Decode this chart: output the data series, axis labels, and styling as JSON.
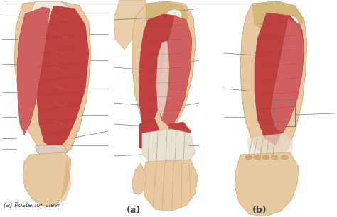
{
  "background_color": "#ffffff",
  "label_left": "(a) Posterior view",
  "label_mid": "(a)",
  "label_right": "(b)",
  "label_fontsize": 6.5,
  "label_fontsize_ab": 9,
  "label_color": "#444444",
  "fig_width": 4.74,
  "fig_height": 3.06,
  "dpi": 100,
  "skin_light": "#e8c8a0",
  "skin_mid": "#d4a870",
  "skin_dark": "#c49060",
  "skin_pale": "#f0dfc0",
  "muscle_dark": "#a03030",
  "muscle_mid": "#c04040",
  "muscle_light": "#d06060",
  "tendon_color": "#d8cfc0",
  "tendon_white": "#e8e0d0",
  "bone_color": "#ddd0b0",
  "line_color": "#777777",
  "line_width": 0.5,
  "white_fiber": "#f0ece0",
  "gray_fiber": "#b0a898"
}
